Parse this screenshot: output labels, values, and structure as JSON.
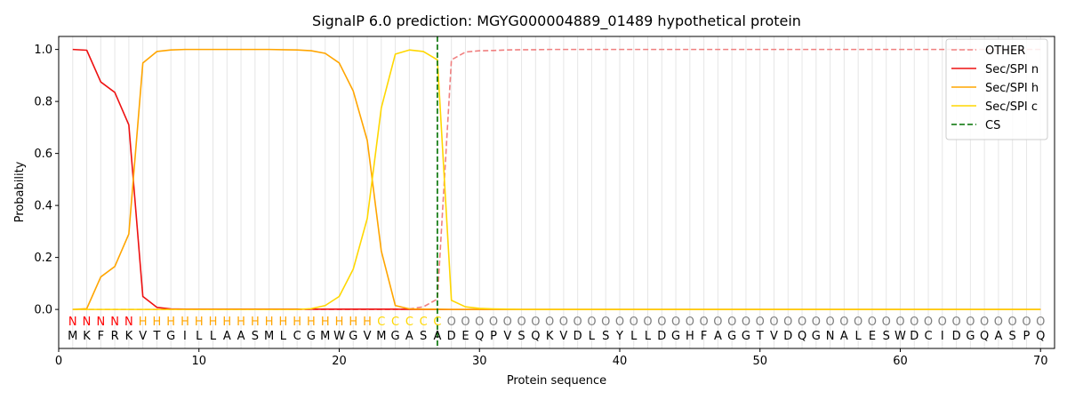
{
  "chart_data": {
    "type": "line",
    "title": "SignalP 6.0 prediction: MGYG000004889_01489 hypothetical protein",
    "xlabel": "Protein sequence",
    "ylabel": "Probability",
    "xlim": [
      0,
      71
    ],
    "ylim": [
      -0.15,
      1.05
    ],
    "xticks": [
      0,
      10,
      20,
      30,
      40,
      50,
      60,
      70
    ],
    "yticks": [
      0.0,
      0.2,
      0.4,
      0.6,
      0.8,
      1.0
    ],
    "vertical_grid": true,
    "legend_position": "upper right",
    "x": [
      1,
      2,
      3,
      4,
      5,
      6,
      7,
      8,
      9,
      10,
      11,
      12,
      13,
      14,
      15,
      16,
      17,
      18,
      19,
      20,
      21,
      22,
      23,
      24,
      25,
      26,
      27,
      28,
      29,
      30,
      31,
      32,
      33,
      34,
      35,
      36,
      37,
      38,
      39,
      40,
      41,
      42,
      43,
      44,
      45,
      46,
      47,
      48,
      49,
      50,
      51,
      52,
      53,
      54,
      55,
      56,
      57,
      58,
      59,
      60,
      61,
      62,
      63,
      64,
      65,
      66,
      67,
      68,
      69,
      70
    ],
    "sequence": [
      "M",
      "K",
      "F",
      "R",
      "K",
      "V",
      "T",
      "G",
      "I",
      "L",
      "L",
      "A",
      "A",
      "S",
      "M",
      "L",
      "C",
      "G",
      "M",
      "W",
      "G",
      "V",
      "M",
      "G",
      "A",
      "S",
      "A",
      "D",
      "E",
      "Q",
      "P",
      "V",
      "S",
      "Q",
      "K",
      "V",
      "D",
      "L",
      "S",
      "Y",
      "L",
      "L",
      "D",
      "G",
      "H",
      "F",
      "A",
      "G",
      "G",
      "T",
      "V",
      "D",
      "Q",
      "G",
      "N",
      "A",
      "L",
      "E",
      "S",
      "W",
      "D",
      "C",
      "I",
      "D",
      "G",
      "Q",
      "A",
      "S",
      "P",
      "Q"
    ],
    "labels": [
      "N",
      "N",
      "N",
      "N",
      "N",
      "H",
      "H",
      "H",
      "H",
      "H",
      "H",
      "H",
      "H",
      "H",
      "H",
      "H",
      "H",
      "H",
      "H",
      "H",
      "H",
      "H",
      "C",
      "C",
      "C",
      "C",
      "C",
      "O",
      "O",
      "O",
      "O",
      "O",
      "O",
      "O",
      "O",
      "O",
      "O",
      "O",
      "O",
      "O",
      "O",
      "O",
      "O",
      "O",
      "O",
      "O",
      "O",
      "O",
      "O",
      "O",
      "O",
      "O",
      "O",
      "O",
      "O",
      "O",
      "O",
      "O",
      "O",
      "O",
      "O",
      "O",
      "O",
      "O",
      "O",
      "O",
      "O",
      "O",
      "O",
      "O"
    ],
    "label_colors": {
      "N": "#ff0000",
      "H": "#ffa500",
      "C": "#ffd700",
      "O": "#808080"
    },
    "series": [
      {
        "name": "OTHER",
        "color": "#f08080",
        "dash": true,
        "values": [
          0.0,
          0.0,
          0.0,
          0.0,
          0.0,
          0.0,
          0.0,
          0.0,
          0.0,
          0.0,
          0.0,
          0.0,
          0.0,
          0.0,
          0.0,
          0.0,
          0.0,
          0.0,
          0.0,
          0.0,
          0.0,
          0.0,
          0.0,
          0.0,
          0.002,
          0.01,
          0.04,
          0.96,
          0.99,
          0.995,
          0.996,
          0.998,
          0.999,
          0.999,
          1.0,
          1.0,
          1.0,
          1.0,
          1.0,
          1.0,
          1.0,
          1.0,
          1.0,
          1.0,
          1.0,
          1.0,
          1.0,
          1.0,
          1.0,
          1.0,
          1.0,
          1.0,
          1.0,
          1.0,
          1.0,
          1.0,
          1.0,
          1.0,
          1.0,
          1.0,
          1.0,
          1.0,
          1.0,
          1.0,
          1.0,
          1.0,
          1.0,
          1.0,
          1.0,
          1.0
        ]
      },
      {
        "name": "Sec/SPI n",
        "color": "#ee1111",
        "dash": false,
        "values": [
          1.0,
          0.997,
          0.875,
          0.835,
          0.71,
          0.05,
          0.008,
          0.002,
          0.001,
          0.001,
          0.001,
          0.001,
          0.001,
          0.001,
          0.001,
          0.001,
          0.001,
          0.001,
          0.001,
          0.001,
          0.001,
          0.001,
          0.001,
          0.001,
          0.0,
          0.0,
          0.0,
          0.0,
          0.0,
          0.0,
          0.0,
          0.0,
          0.0,
          0.0,
          0.0,
          0.0,
          0.0,
          0.0,
          0.0,
          0.0,
          0.0,
          0.0,
          0.0,
          0.0,
          0.0,
          0.0,
          0.0,
          0.0,
          0.0,
          0.0,
          0.0,
          0.0,
          0.0,
          0.0,
          0.0,
          0.0,
          0.0,
          0.0,
          0.0,
          0.0,
          0.0,
          0.0,
          0.0,
          0.0,
          0.0,
          0.0,
          0.0,
          0.0,
          0.0,
          0.0
        ]
      },
      {
        "name": "Sec/SPI h",
        "color": "#ffa500",
        "dash": false,
        "values": [
          0.0,
          0.003,
          0.125,
          0.165,
          0.29,
          0.948,
          0.992,
          0.998,
          1.0,
          1.0,
          1.0,
          1.0,
          1.0,
          1.0,
          1.0,
          0.999,
          0.998,
          0.995,
          0.985,
          0.948,
          0.84,
          0.65,
          0.225,
          0.015,
          0.002,
          0.001,
          0.001,
          0.0,
          0.0,
          0.0,
          0.0,
          0.0,
          0.0,
          0.0,
          0.0,
          0.0,
          0.0,
          0.0,
          0.0,
          0.0,
          0.0,
          0.0,
          0.0,
          0.0,
          0.0,
          0.0,
          0.0,
          0.0,
          0.0,
          0.0,
          0.0,
          0.0,
          0.0,
          0.0,
          0.0,
          0.0,
          0.0,
          0.0,
          0.0,
          0.0,
          0.0,
          0.0,
          0.0,
          0.0,
          0.0,
          0.0,
          0.0,
          0.0,
          0.0,
          0.0
        ]
      },
      {
        "name": "Sec/SPI c",
        "color": "#ffd700",
        "dash": false,
        "values": [
          0.0,
          0.0,
          0.0,
          0.0,
          0.0,
          0.0,
          0.0,
          0.0,
          0.0,
          0.0,
          0.0,
          0.0,
          0.0,
          0.0,
          0.0,
          0.0,
          0.0,
          0.003,
          0.015,
          0.05,
          0.155,
          0.35,
          0.775,
          0.982,
          0.998,
          0.992,
          0.96,
          0.035,
          0.01,
          0.004,
          0.002,
          0.001,
          0.0,
          0.0,
          0.0,
          0.0,
          0.0,
          0.0,
          0.0,
          0.0,
          0.0,
          0.0,
          0.0,
          0.0,
          0.0,
          0.0,
          0.0,
          0.0,
          0.0,
          0.0,
          0.0,
          0.0,
          0.0,
          0.0,
          0.0,
          0.0,
          0.0,
          0.0,
          0.0,
          0.0,
          0.0,
          0.0,
          0.0,
          0.0,
          0.0,
          0.0,
          0.0,
          0.0,
          0.0,
          0.0
        ]
      }
    ],
    "cs": {
      "name": "CS",
      "x": 27,
      "color": "#007000"
    }
  }
}
